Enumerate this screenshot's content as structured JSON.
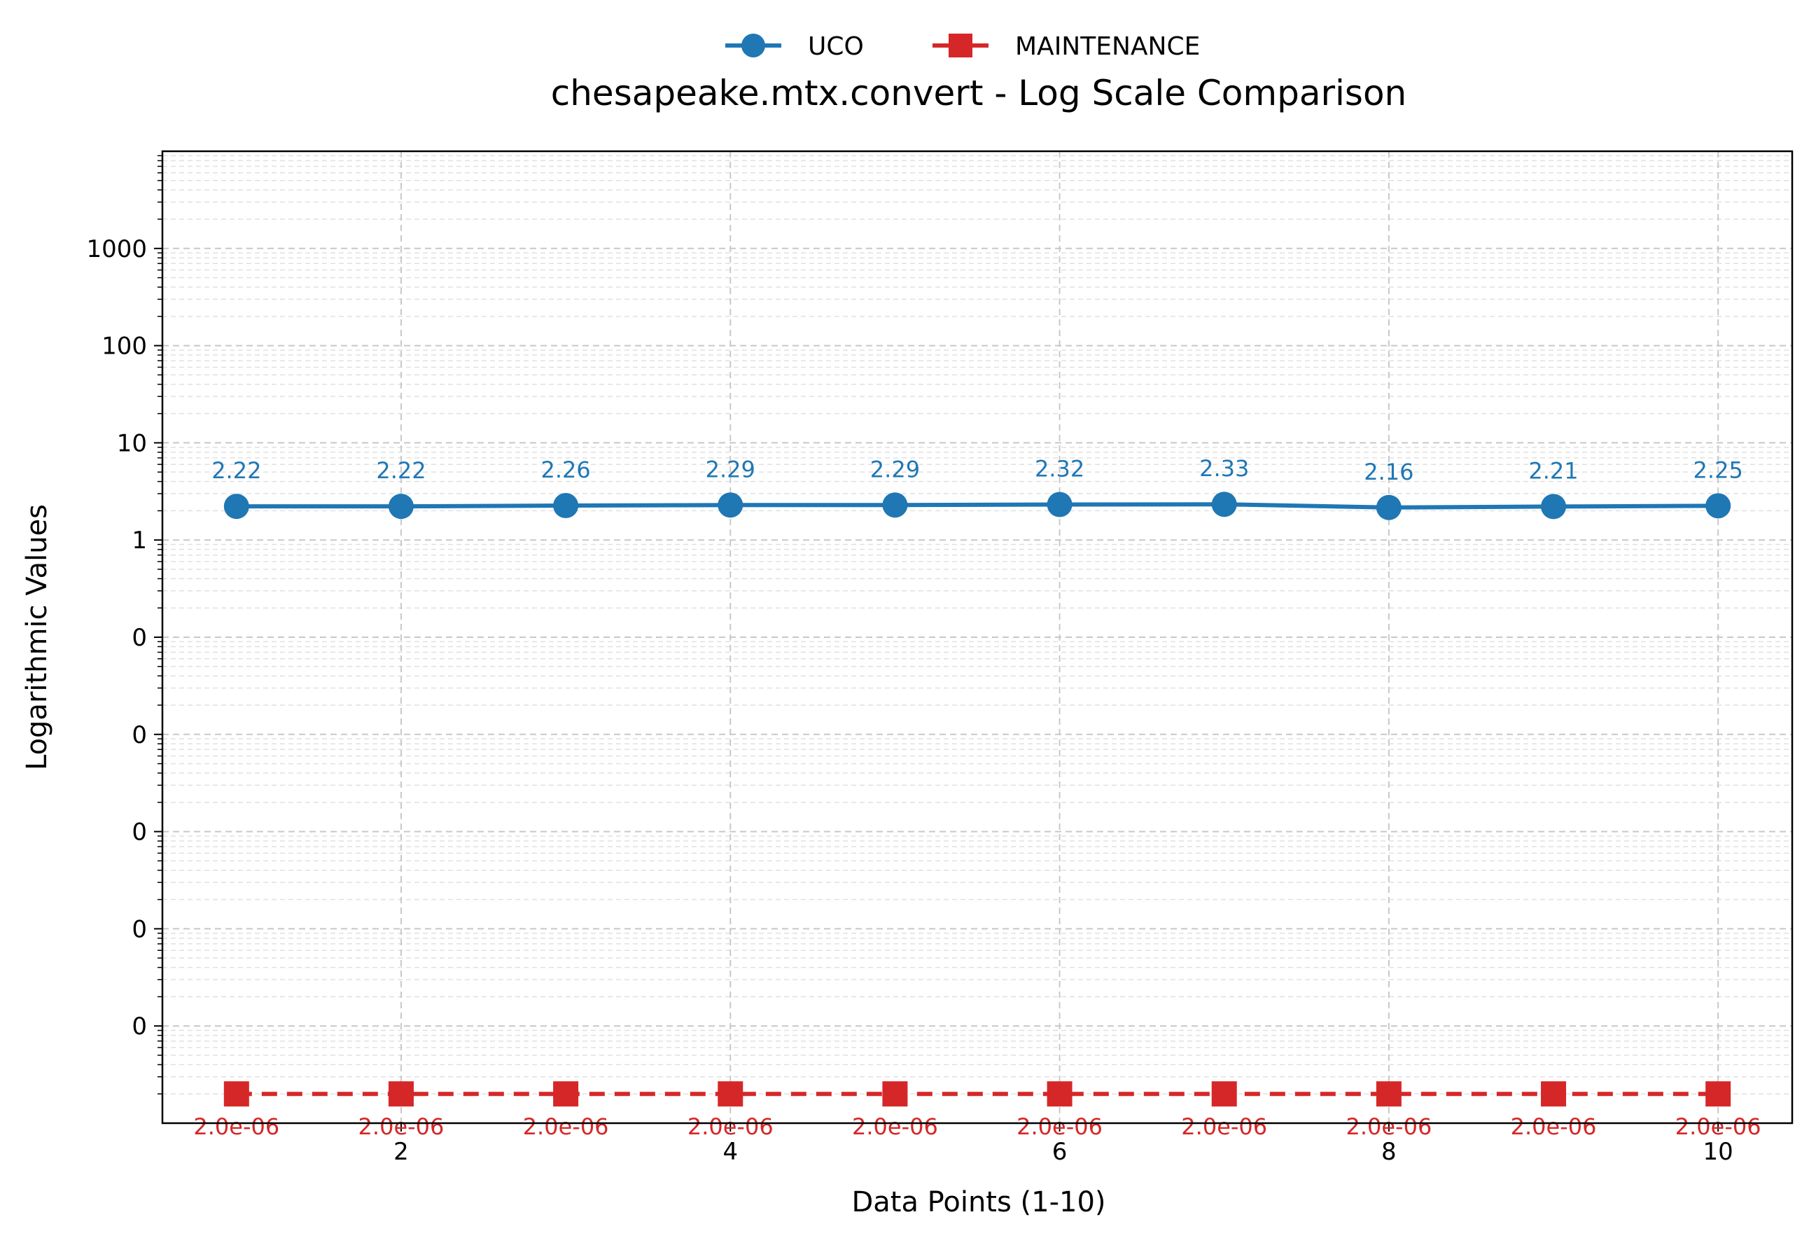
{
  "chart_data": {
    "type": "line",
    "title": "chesapeake.mtx.convert - Log Scale Comparison",
    "xlabel": "Data Points (1-10)",
    "ylabel": "Logarithmic Values",
    "x": [
      1,
      2,
      3,
      4,
      5,
      6,
      7,
      8,
      9,
      10
    ],
    "x_ticks": [
      2,
      4,
      6,
      8,
      10
    ],
    "x_tick_labels": [
      "2",
      "4",
      "6",
      "8",
      "10"
    ],
    "xlim": [
      0.55,
      10.45
    ],
    "yscale": "log",
    "ylim": [
      1e-06,
      10000
    ],
    "y_ticks": [
      1e-05,
      0.0001,
      0.001,
      0.01,
      0.1,
      1,
      10,
      100,
      1000
    ],
    "y_tick_labels": [
      "0",
      "0",
      "0",
      "0",
      "0",
      "1",
      "10",
      "100",
      "1000"
    ],
    "grid": true,
    "legend_position": "top-center",
    "series": [
      {
        "name": "UCO",
        "color": "#1f77b4",
        "marker": "circle",
        "values": [
          2.22,
          2.22,
          2.26,
          2.29,
          2.29,
          2.32,
          2.33,
          2.16,
          2.21,
          2.25
        ],
        "labels": [
          "2.22",
          "2.22",
          "2.26",
          "2.29",
          "2.29",
          "2.32",
          "2.33",
          "2.16",
          "2.21",
          "2.25"
        ]
      },
      {
        "name": "MAINTENANCE",
        "color": "#d62728",
        "marker": "square",
        "line_style": "dashed",
        "values": [
          2e-06,
          2e-06,
          2e-06,
          2e-06,
          2e-06,
          2e-06,
          2e-06,
          2e-06,
          2e-06,
          2e-06
        ],
        "labels": [
          "2.0e-06",
          "2.0e-06",
          "2.0e-06",
          "2.0e-06",
          "2.0e-06",
          "2.0e-06",
          "2.0e-06",
          "2.0e-06",
          "2.0e-06",
          "2.0e-06"
        ]
      }
    ]
  }
}
